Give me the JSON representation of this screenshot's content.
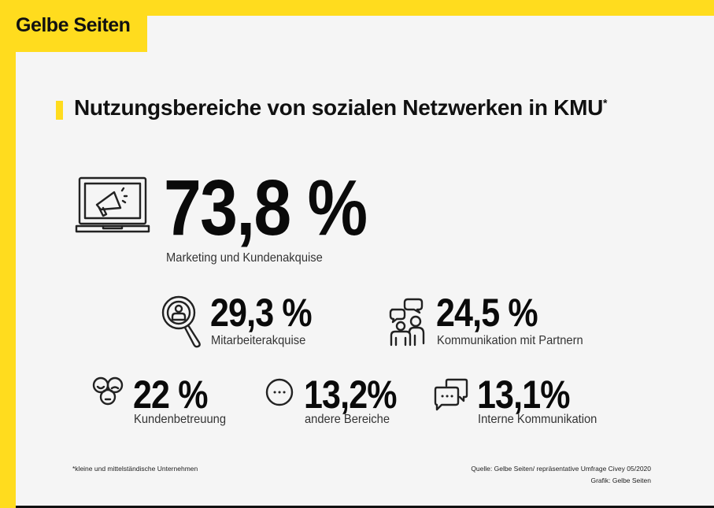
{
  "brand": {
    "logo_text": "Gelbe Seiten",
    "accent_color": "#FFDC1E"
  },
  "title": {
    "text": "Nutzungsbereiche von sozialen Netzwerken in KMU",
    "footnote_mark": "*"
  },
  "stats": [
    {
      "value": "73,8 %",
      "label": "Marketing und Kundenakquise",
      "icon": "laptop-megaphone-icon"
    },
    {
      "value": "29,3 %",
      "label": "Mitarbeiterakquise",
      "icon": "magnifier-person-icon"
    },
    {
      "value": "24,5 %",
      "label": "Kommunikation mit Partnern",
      "icon": "people-chat-icon"
    },
    {
      "value": "22 %",
      "label": "Kundenbetreuung",
      "icon": "faces-icon"
    },
    {
      "value": "13,2%",
      "label": "andere Bereiche",
      "icon": "ellipsis-circle-icon"
    },
    {
      "value": "13,1%",
      "label": "Interne Kommunikation",
      "icon": "chat-bubbles-icon"
    }
  ],
  "footer": {
    "footnote": "*kleine und mittelständische Unternehmen",
    "source": "Quelle: Gelbe Seiten/ repräsentative Umfrage Civey 05/2020",
    "credit": "Grafik: Gelbe Seiten"
  }
}
